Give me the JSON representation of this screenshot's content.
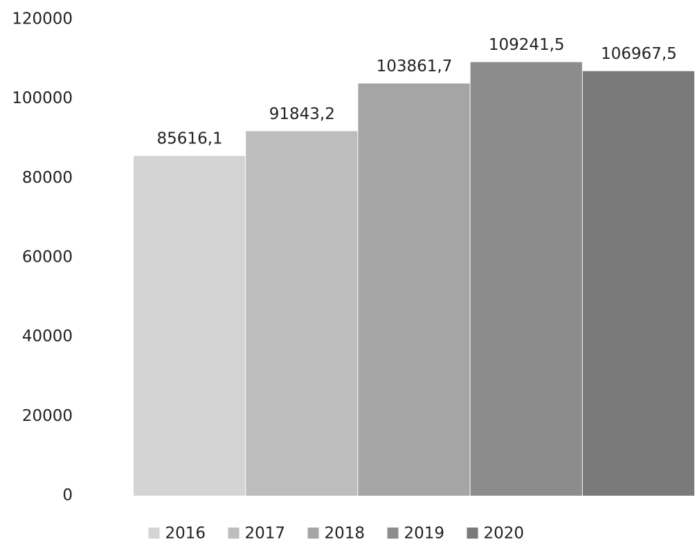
{
  "chart_data": {
    "type": "bar",
    "categories": [
      null
    ],
    "series": [
      {
        "name": "2016",
        "color": "#d4d4d4",
        "values": [
          85616.1
        ],
        "value_labels": [
          "85616,1"
        ]
      },
      {
        "name": "2017",
        "color": "#bdbdbd",
        "values": [
          91843.2
        ],
        "value_labels": [
          "91843,2"
        ]
      },
      {
        "name": "2018",
        "color": "#a5a5a5",
        "values": [
          103861.7
        ],
        "value_labels": [
          "103861,7"
        ]
      },
      {
        "name": "2019",
        "color": "#8c8c8c",
        "values": [
          109241.5
        ],
        "value_labels": [
          "109241,5"
        ]
      },
      {
        "name": "2020",
        "color": "#7a7a7a",
        "values": [
          106967.5
        ],
        "value_labels": [
          "106967,5"
        ]
      }
    ],
    "ylim": [
      0,
      120000
    ],
    "yticks": [
      0,
      20000,
      40000,
      60000,
      80000,
      100000,
      120000
    ],
    "grid": false,
    "legend": "bottom"
  }
}
